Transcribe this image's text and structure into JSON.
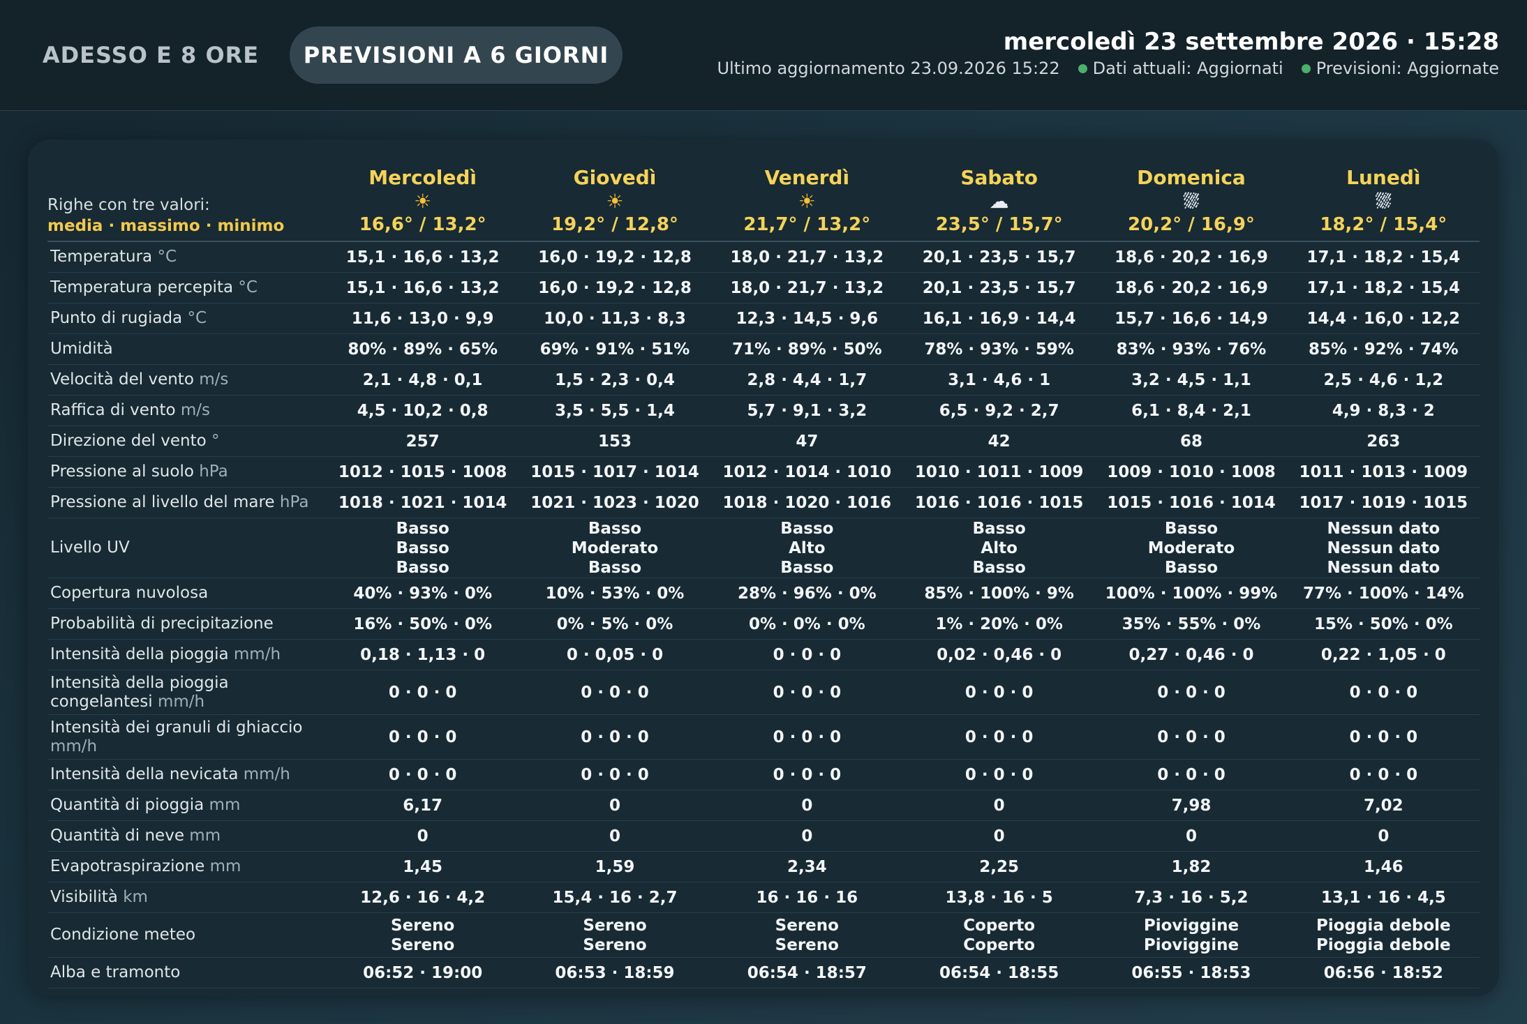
{
  "tabs": [
    {
      "label": "ADESSO E 8 ORE",
      "active": false
    },
    {
      "label": "PREVISIONI A 6 GIORNI",
      "active": true
    }
  ],
  "header": {
    "datetime": "mercoledì 23 settembre 2026 · 15:28",
    "last_update": "Ultimo aggiornamento 23.09.2026 15:22",
    "status_current": "Dati attuali: Aggiornati",
    "status_forecast": "Previsioni: Aggiornate",
    "status_color": "#4caf6a"
  },
  "legend": {
    "line1": "Righe con tre valori:",
    "line2": "media · massimo · minimo"
  },
  "days": [
    {
      "name": "Mercoledì",
      "icon": "sun-icon",
      "temps": "16,6° / 13,2°"
    },
    {
      "name": "Giovedì",
      "icon": "sun-icon",
      "temps": "19,2° / 12,8°"
    },
    {
      "name": "Venerdì",
      "icon": "sun-icon",
      "temps": "21,7° / 13,2°"
    },
    {
      "name": "Sabato",
      "icon": "cloud-icon",
      "temps": "23,5° / 15,7°"
    },
    {
      "name": "Domenica",
      "icon": "rain-cloud-icon",
      "temps": "20,2° / 16,9°"
    },
    {
      "name": "Lunedì",
      "icon": "rain-cloud-icon",
      "temps": "18,2° / 15,4°"
    }
  ],
  "rows": [
    {
      "label": "Temperatura",
      "unit": "°C",
      "values": [
        "15,1 · 16,6 · 13,2",
        "16,0 · 19,2 · 12,8",
        "18,0 · 21,7 · 13,2",
        "20,1 · 23,5 · 15,7",
        "18,6 · 20,2 · 16,9",
        "17,1 · 18,2 · 15,4"
      ]
    },
    {
      "label": "Temperatura percepita",
      "unit": "°C",
      "values": [
        "15,1 · 16,6 · 13,2",
        "16,0 · 19,2 · 12,8",
        "18,0 · 21,7 · 13,2",
        "20,1 · 23,5 · 15,7",
        "18,6 · 20,2 · 16,9",
        "17,1 · 18,2 · 15,4"
      ]
    },
    {
      "label": "Punto di rugiada",
      "unit": "°C",
      "values": [
        "11,6 · 13,0 · 9,9",
        "10,0 · 11,3 · 8,3",
        "12,3 · 14,5 · 9,6",
        "16,1 · 16,9 · 14,4",
        "15,7 · 16,6 · 14,9",
        "14,4 · 16,0 · 12,2"
      ]
    },
    {
      "label": "Umidità",
      "unit": "",
      "values": [
        "80% · 89% · 65%",
        "69% · 91% · 51%",
        "71% · 89% · 50%",
        "78% · 93% · 59%",
        "83% · 93% · 76%",
        "85% · 92% · 74%"
      ]
    },
    {
      "label": "Velocità del vento",
      "unit": "m/s",
      "values": [
        "2,1 · 4,8 · 0,1",
        "1,5 · 2,3 · 0,4",
        "2,8 · 4,4 · 1,7",
        "3,1 · 4,6 · 1",
        "3,2 · 4,5 · 1,1",
        "2,5 · 4,6 · 1,2"
      ]
    },
    {
      "label": "Raffica di vento",
      "unit": "m/s",
      "values": [
        "4,5 · 10,2 · 0,8",
        "3,5 · 5,5 · 1,4",
        "5,7 · 9,1 · 3,2",
        "6,5 · 9,2 · 2,7",
        "6,1 · 8,4 · 2,1",
        "4,9 · 8,3 · 2"
      ]
    },
    {
      "label": "Direzione del vento",
      "unit": "°",
      "values": [
        "257",
        "153",
        "47",
        "42",
        "68",
        "263"
      ]
    },
    {
      "label": "Pressione al suolo",
      "unit": "hPa",
      "values": [
        "1012 · 1015 · 1008",
        "1015 · 1017 · 1014",
        "1012 · 1014 · 1010",
        "1010 · 1011 · 1009",
        "1009 · 1010 · 1008",
        "1011 · 1013 · 1009"
      ]
    },
    {
      "label": "Pressione al livello del mare",
      "unit": "hPa",
      "values": [
        "1018 · 1021 · 1014",
        "1021 · 1023 · 1020",
        "1018 · 1020 · 1016",
        "1016 · 1016 · 1015",
        "1015 · 1016 · 1014",
        "1017 · 1019 · 1015"
      ]
    },
    {
      "label": "Livello UV",
      "unit": "",
      "values": [
        [
          "Basso",
          "Basso",
          "Basso"
        ],
        [
          "Basso",
          "Moderato",
          "Basso"
        ],
        [
          "Basso",
          "Alto",
          "Basso"
        ],
        [
          "Basso",
          "Alto",
          "Basso"
        ],
        [
          "Basso",
          "Moderato",
          "Basso"
        ],
        [
          "Nessun dato",
          "Nessun dato",
          "Nessun dato"
        ]
      ]
    },
    {
      "label": "Copertura nuvolosa",
      "unit": "",
      "values": [
        "40% · 93% · 0%",
        "10% · 53% · 0%",
        "28% · 96% · 0%",
        "85% · 100% · 9%",
        "100% · 100% · 99%",
        "77% · 100% · 14%"
      ]
    },
    {
      "label": "Probabilità di precipitazione",
      "unit": "",
      "values": [
        "16% · 50% · 0%",
        "0% · 5% · 0%",
        "0% · 0% · 0%",
        "1% · 20% · 0%",
        "35% · 55% · 0%",
        "15% · 50% · 0%"
      ]
    },
    {
      "label": "Intensità della pioggia",
      "unit": "mm/h",
      "values": [
        "0,18 · 1,13 · 0",
        "0 · 0,05 · 0",
        "0 · 0 · 0",
        "0,02 · 0,46 · 0",
        "0,27 · 0,46 · 0",
        "0,22 · 1,05 · 0"
      ]
    },
    {
      "label": "Intensità della pioggia congelantesi",
      "unit": "mm/h",
      "values": [
        "0 · 0 · 0",
        "0 · 0 · 0",
        "0 · 0 · 0",
        "0 · 0 · 0",
        "0 · 0 · 0",
        "0 · 0 · 0"
      ]
    },
    {
      "label": "Intensità dei granuli di ghiaccio",
      "unit": "mm/h",
      "values": [
        "0 · 0 · 0",
        "0 · 0 · 0",
        "0 · 0 · 0",
        "0 · 0 · 0",
        "0 · 0 · 0",
        "0 · 0 · 0"
      ]
    },
    {
      "label": "Intensità della nevicata",
      "unit": "mm/h",
      "values": [
        "0 · 0 · 0",
        "0 · 0 · 0",
        "0 · 0 · 0",
        "0 · 0 · 0",
        "0 · 0 · 0",
        "0 · 0 · 0"
      ]
    },
    {
      "label": "Quantità di pioggia",
      "unit": "mm",
      "values": [
        "6,17",
        "0",
        "0",
        "0",
        "7,98",
        "7,02"
      ]
    },
    {
      "label": "Quantità di neve",
      "unit": "mm",
      "values": [
        "0",
        "0",
        "0",
        "0",
        "0",
        "0"
      ]
    },
    {
      "label": "Evapotraspirazione",
      "unit": "mm",
      "values": [
        "1,45",
        "1,59",
        "2,34",
        "2,25",
        "1,82",
        "1,46"
      ]
    },
    {
      "label": "Visibilità",
      "unit": "km",
      "values": [
        "12,6 · 16 · 4,2",
        "15,4 · 16 · 2,7",
        "16 · 16 · 16",
        "13,8 · 16 · 5",
        "7,3 · 16 · 5,2",
        "13,1 · 16 · 4,5"
      ]
    },
    {
      "label": "Condizione meteo",
      "unit": "",
      "values": [
        [
          "Sereno",
          "Sereno"
        ],
        [
          "Sereno",
          "Sereno"
        ],
        [
          "Sereno",
          "Sereno"
        ],
        [
          "Coperto",
          "Coperto"
        ],
        [
          "Pioviggine",
          "Pioviggine"
        ],
        [
          "Pioggia debole",
          "Pioggia debole"
        ]
      ]
    },
    {
      "label": "Alba e tramonto",
      "unit": "",
      "values": [
        "06:52 · 19:00",
        "06:53 · 18:59",
        "06:54 · 18:57",
        "06:54 · 18:55",
        "06:55 · 18:53",
        "06:56 · 18:52"
      ]
    }
  ]
}
